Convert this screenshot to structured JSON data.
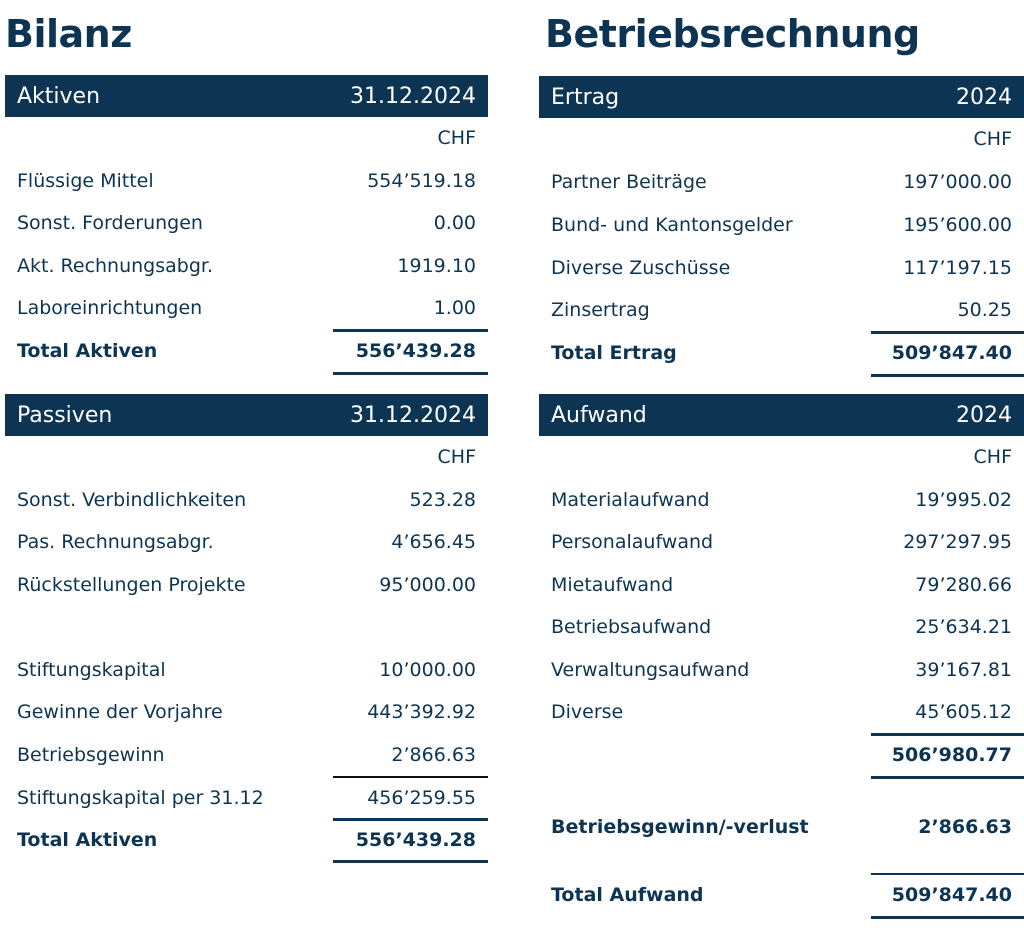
{
  "bilanz": {
    "title": "Bilanz",
    "aktiven": {
      "header_label": "Aktiven",
      "header_date": "31.12.2024",
      "currency": "CHF",
      "rows": [
        {
          "label": "Flüssige Mittel",
          "value": "554’519.18"
        },
        {
          "label": "Sonst. Forderungen",
          "value": "0.00"
        },
        {
          "label": "Akt. Rechnungsabgr.",
          "value": "1919.10"
        },
        {
          "label": "Laboreinrichtungen",
          "value": "1.00"
        }
      ],
      "total_label": "Total Aktiven",
      "total_value": "556’439.28"
    },
    "passiven": {
      "header_label": "Passiven",
      "header_date": "31.12.2024",
      "currency": "CHF",
      "rows": [
        {
          "label": "Sonst. Verbindlichkeiten",
          "value": "523.28"
        },
        {
          "label": "Pas. Rechnungsabgr.",
          "value": "4’656.45"
        },
        {
          "label": "Rückstellungen Projekte",
          "value": "95’000.00"
        },
        {
          "label": "Stiftungskapital",
          "value": "10’000.00"
        },
        {
          "label": "Gewinne der Vorjahre",
          "value": "443’392.92"
        },
        {
          "label": "Betriebsgewinn",
          "value": "2’866.63"
        },
        {
          "label": "Stiftungskapital per 31.12",
          "value": "456’259.55"
        }
      ],
      "total_label": "Total Aktiven",
      "total_value": "556’439.28"
    }
  },
  "betriebsrechnung": {
    "title": "Betriebsrechnung",
    "ertrag": {
      "header_label": "Ertrag",
      "header_year": "2024",
      "currency": "CHF",
      "rows": [
        {
          "label": "Partner Beiträge",
          "value": "197’000.00"
        },
        {
          "label": "Bund- und Kantonsgelder",
          "value": "195’600.00"
        },
        {
          "label": "Diverse Zuschüsse",
          "value": "117’197.15"
        },
        {
          "label": "Zinsertrag",
          "value": "50.25"
        }
      ],
      "total_label": "Total Ertrag",
      "total_value": "509’847.40"
    },
    "aufwand": {
      "header_label": "Aufwand",
      "header_year": "2024",
      "currency": "CHF",
      "rows": [
        {
          "label": "Materialaufwand",
          "value": "19’995.02"
        },
        {
          "label": "Personalaufwand",
          "value": "297’297.95"
        },
        {
          "label": "Mietaufwand",
          "value": "79’280.66"
        },
        {
          "label": "Betriebsaufwand",
          "value": "25’634.21"
        },
        {
          "label": "Verwaltungsaufwand",
          "value": "39’167.81"
        },
        {
          "label": "Diverse",
          "value": "45’605.12"
        }
      ],
      "subtotal_value": "506’980.77",
      "result_label": "Betriebsgewinn/-verlust",
      "result_value": "2’866.63",
      "total_label": "Total Aufwand",
      "total_value": "509’847.40"
    }
  }
}
